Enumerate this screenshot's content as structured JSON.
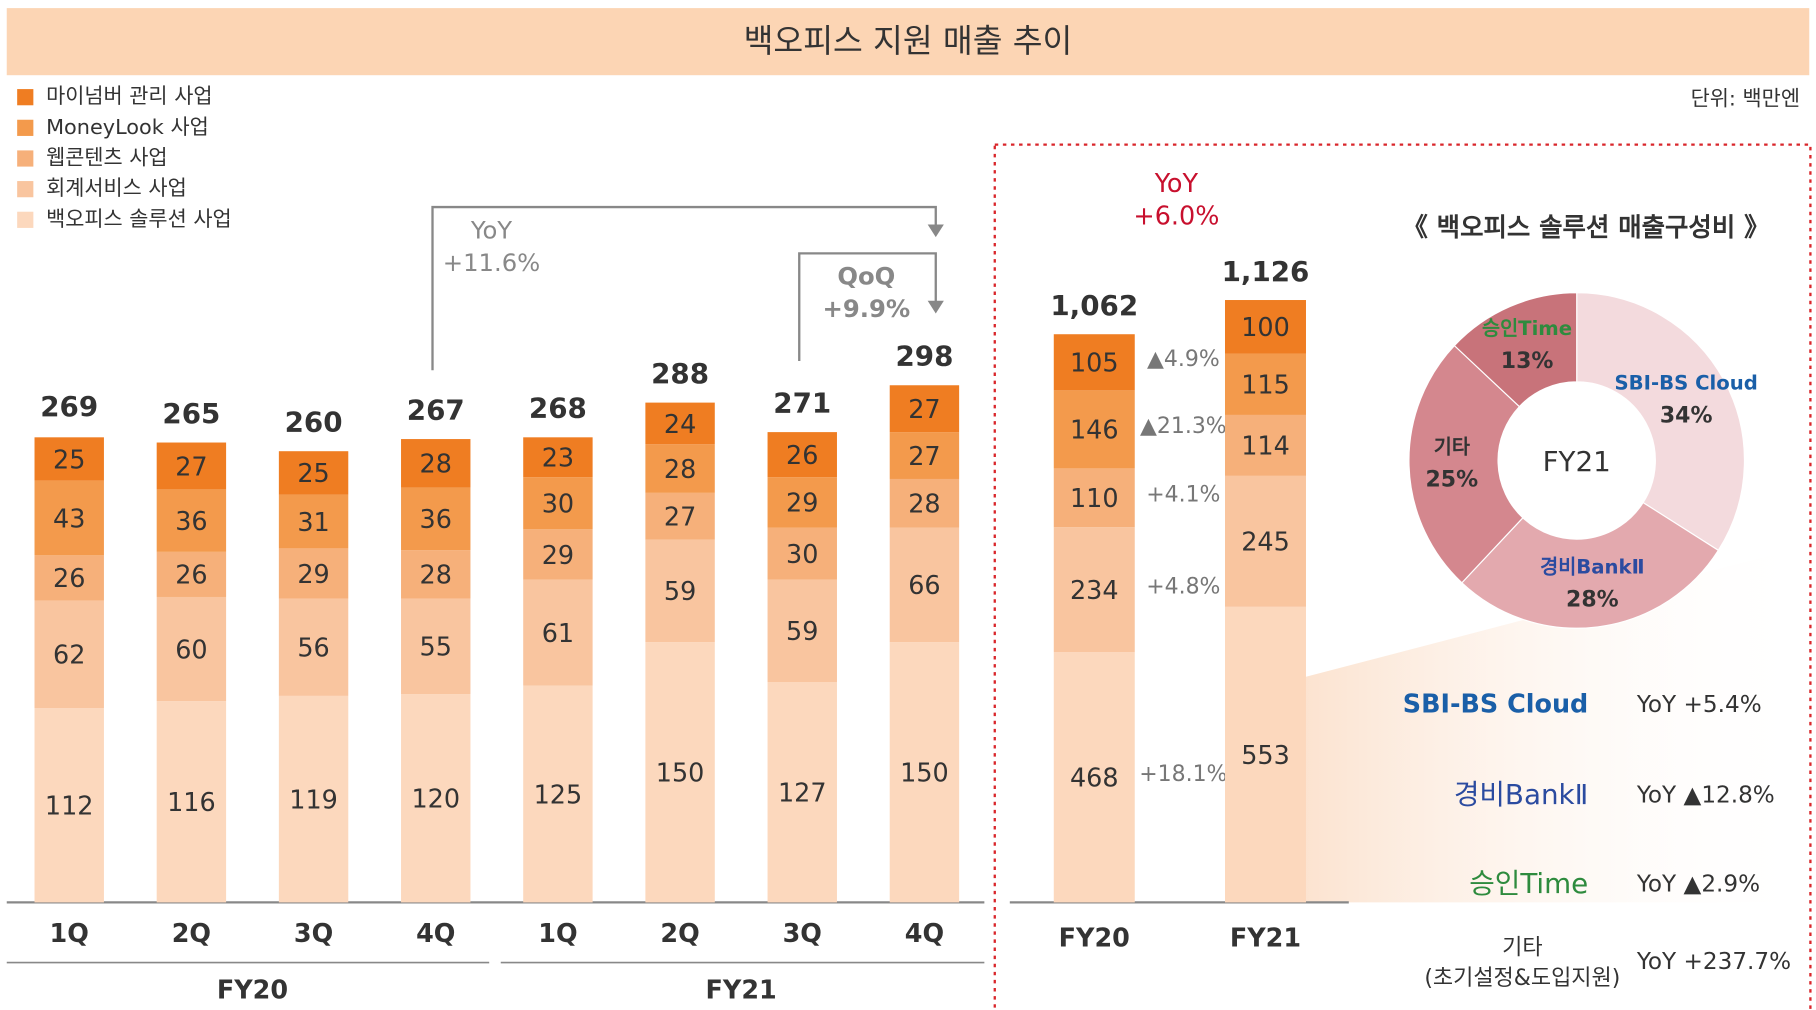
{
  "title": "백오피스 지원 매출 추이",
  "unit": "단위: 백만엔",
  "chart_data": [
    {
      "type": "bar",
      "stacked": true,
      "categories": [
        "1Q",
        "2Q",
        "3Q",
        "4Q",
        "1Q",
        "2Q",
        "3Q",
        "4Q"
      ],
      "groups": [
        "FY20",
        "FY21"
      ],
      "series": [
        {
          "name": "마이넘버 관리 사업",
          "color": "#ef7d22",
          "values": [
            25,
            27,
            25,
            28,
            23,
            24,
            26,
            27
          ]
        },
        {
          "name": "MoneyLook 사업",
          "color": "#f39a4c",
          "values": [
            43,
            36,
            31,
            36,
            30,
            28,
            29,
            27
          ]
        },
        {
          "name": "웹콘텐츠 사업",
          "color": "#f6b07a",
          "values": [
            26,
            26,
            29,
            28,
            29,
            27,
            30,
            28
          ]
        },
        {
          "name": "회계서비스 사업",
          "color": "#f9c59f",
          "values": [
            62,
            60,
            56,
            55,
            61,
            59,
            59,
            66
          ]
        },
        {
          "name": "백오피스 솔루션 사업",
          "color": "#fcd8bd",
          "values": [
            112,
            116,
            119,
            120,
            125,
            150,
            127,
            150
          ]
        }
      ],
      "totals": [
        269,
        265,
        260,
        267,
        268,
        288,
        271,
        298
      ],
      "annotations": [
        {
          "lines": [
            "YoY",
            "+11.6%"
          ]
        },
        {
          "lines": [
            "QoQ",
            "+9.9%"
          ]
        }
      ]
    },
    {
      "type": "bar",
      "stacked": true,
      "categories": [
        "FY20",
        "FY21"
      ],
      "series": [
        {
          "name": "마이넘버 관리 사업",
          "color": "#ef7d22",
          "values": [
            105,
            100
          ]
        },
        {
          "name": "MoneyLook 사업",
          "color": "#f39a4c",
          "values": [
            146,
            115
          ]
        },
        {
          "name": "웹콘텐츠 사업",
          "color": "#f6b07a",
          "values": [
            110,
            114
          ]
        },
        {
          "name": "회계서비스 사업",
          "color": "#f9c59f",
          "values": [
            234,
            245
          ]
        },
        {
          "name": "백오피스 솔루션 사업",
          "color": "#fcd8bd",
          "values": [
            468,
            553
          ]
        }
      ],
      "totals": [
        1062,
        1126
      ],
      "total_labels": [
        "1,062",
        "1,126"
      ],
      "growth": [
        "▲4.9%",
        "▲21.3%",
        "+4.1%",
        "+4.8%",
        "+18.1%"
      ],
      "annotation": [
        "YoY",
        "+6.0%"
      ]
    },
    {
      "type": "pie",
      "donut": true,
      "title": "《 백오피스 솔루션 매출구성비 》",
      "center_label": "FY21",
      "categories": [
        "SBI-BS Cloud",
        "경비BankⅡ",
        "기타",
        "승인Time"
      ],
      "values": [
        34,
        28,
        25,
        13
      ],
      "value_labels": [
        "34%",
        "28%",
        "25%",
        "13%"
      ],
      "colors": [
        "#f3dadd",
        "#e3a9ae",
        "#d4878e",
        "#c8737a"
      ],
      "label_colors": [
        "#1a5fa8",
        "#2b4ba0",
        "#333333",
        "#2e8b3e"
      ]
    }
  ],
  "growth_list": [
    {
      "name": "SBI-BS Cloud",
      "color": "#1a5fa8",
      "text": "YoY +5.4%"
    },
    {
      "name": "경비BankⅡ",
      "color": "#2b4ba0",
      "text": "YoY ▲12.8%"
    },
    {
      "name": "승인Time",
      "color": "#2e8b3e",
      "text": "YoY ▲2.9%"
    },
    {
      "name": "기타",
      "note": "(초기설정&도입지원)",
      "color": "#333333",
      "text": "YoY +237.7%"
    }
  ]
}
